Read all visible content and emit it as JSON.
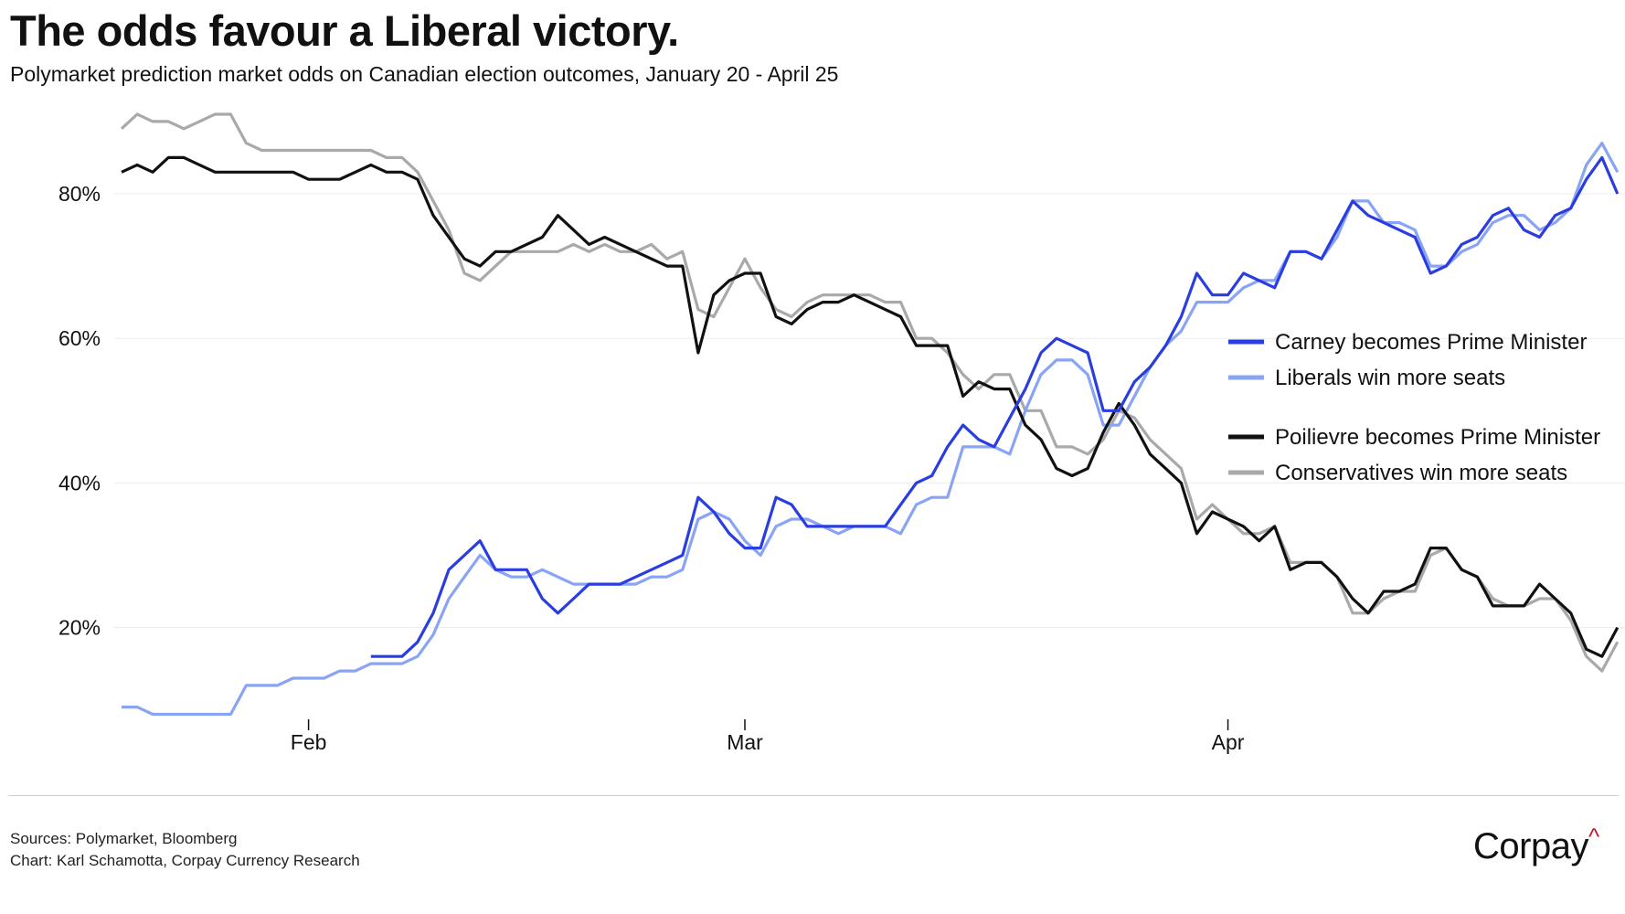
{
  "header": {
    "title": "The odds favour a Liberal victory.",
    "subtitle": "Polymarket prediction market odds on Canadian election outcomes,",
    "subtitle_range": " January 20 - April 25"
  },
  "footer": {
    "sources": "Sources: Polymarket, Bloomberg",
    "chart_credit": "Chart: Karl Schamotta, Corpay Currency Research",
    "logo": "Corpay",
    "logo_mark": "^"
  },
  "chart_data": {
    "type": "line",
    "title": "The odds favour a Liberal victory.",
    "xlabel": "",
    "ylabel": "",
    "x_start": "Jan 20",
    "x_end": "Apr 25",
    "x_unit": "day index from Jan 20",
    "xticks": [
      {
        "label": "Feb",
        "day": 12
      },
      {
        "label": "Mar",
        "day": 40
      },
      {
        "label": "Apr",
        "day": 71
      }
    ],
    "yticks": [
      {
        "label": "20%",
        "value": 20
      },
      {
        "label": "40%",
        "value": 40
      },
      {
        "label": "60%",
        "value": 60
      },
      {
        "label": "80%",
        "value": 80
      }
    ],
    "grid": true,
    "legend_position": "right",
    "series": [
      {
        "name": "Carney becomes Prime Minister",
        "color": "#2a3de0",
        "values": [
          null,
          null,
          null,
          null,
          null,
          null,
          null,
          null,
          null,
          null,
          null,
          null,
          null,
          null,
          null,
          null,
          16,
          16,
          16,
          18,
          22,
          28,
          30,
          32,
          28,
          28,
          28,
          24,
          22,
          24,
          26,
          26,
          26,
          27,
          28,
          29,
          30,
          38,
          36,
          33,
          31,
          31,
          38,
          37,
          34,
          34,
          34,
          34,
          34,
          34,
          37,
          40,
          41,
          45,
          48,
          46,
          45,
          49,
          53,
          58,
          60,
          59,
          58,
          50,
          50,
          54,
          56,
          59,
          63,
          69,
          66,
          66,
          69,
          68,
          67,
          72,
          72,
          71,
          75,
          79,
          77,
          76,
          75,
          74,
          69,
          70,
          73,
          74,
          77,
          78,
          75,
          74,
          77,
          78,
          82,
          85,
          80
        ]
      },
      {
        "name": "Liberals win more seats",
        "color": "#8aa4f5",
        "values": [
          9,
          9,
          8,
          8,
          8,
          8,
          8,
          8,
          12,
          12,
          12,
          13,
          13,
          13,
          14,
          14,
          15,
          15,
          15,
          16,
          19,
          24,
          27,
          30,
          28,
          27,
          27,
          28,
          27,
          26,
          26,
          26,
          26,
          26,
          27,
          27,
          28,
          35,
          36,
          35,
          32,
          30,
          34,
          35,
          35,
          34,
          33,
          34,
          34,
          34,
          33,
          37,
          38,
          38,
          45,
          45,
          45,
          44,
          50,
          55,
          57,
          57,
          55,
          48,
          48,
          52,
          56,
          59,
          61,
          65,
          65,
          65,
          67,
          68,
          68,
          72,
          72,
          71,
          74,
          79,
          79,
          76,
          76,
          75,
          70,
          70,
          72,
          73,
          76,
          77,
          77,
          75,
          76,
          78,
          84,
          87,
          83
        ]
      },
      {
        "name": "Poilievre becomes Prime Minister",
        "color": "#111111",
        "values": [
          83,
          84,
          83,
          85,
          85,
          84,
          83,
          83,
          83,
          83,
          83,
          83,
          82,
          82,
          82,
          83,
          84,
          83,
          83,
          82,
          77,
          74,
          71,
          70,
          72,
          72,
          73,
          74,
          77,
          75,
          73,
          74,
          73,
          72,
          71,
          70,
          70,
          58,
          66,
          68,
          69,
          69,
          63,
          62,
          64,
          65,
          65,
          66,
          65,
          64,
          63,
          59,
          59,
          59,
          52,
          54,
          53,
          53,
          48,
          46,
          42,
          41,
          42,
          47,
          51,
          48,
          44,
          42,
          40,
          33,
          36,
          35,
          34,
          32,
          34,
          28,
          29,
          29,
          27,
          24,
          22,
          25,
          25,
          26,
          31,
          31,
          28,
          27,
          23,
          23,
          23,
          26,
          24,
          22,
          17,
          16,
          20
        ]
      },
      {
        "name": "Conservatives win more seats",
        "color": "#a9a9a9",
        "values": [
          89,
          91,
          90,
          90,
          89,
          90,
          91,
          91,
          87,
          86,
          86,
          86,
          86,
          86,
          86,
          86,
          86,
          85,
          85,
          83,
          79,
          75,
          69,
          68,
          70,
          72,
          72,
          72,
          72,
          73,
          72,
          73,
          72,
          72,
          73,
          71,
          72,
          64,
          63,
          67,
          71,
          67,
          64,
          63,
          65,
          66,
          66,
          66,
          66,
          65,
          65,
          60,
          60,
          58,
          55,
          53,
          55,
          55,
          50,
          50,
          45,
          45,
          44,
          46,
          50,
          49,
          46,
          44,
          42,
          35,
          37,
          35,
          33,
          33,
          34,
          29,
          29,
          29,
          27,
          22,
          22,
          24,
          25,
          25,
          30,
          31,
          28,
          27,
          24,
          23,
          23,
          24,
          24,
          21,
          16,
          14,
          18
        ]
      }
    ],
    "ylim": [
      5,
      95
    ]
  }
}
